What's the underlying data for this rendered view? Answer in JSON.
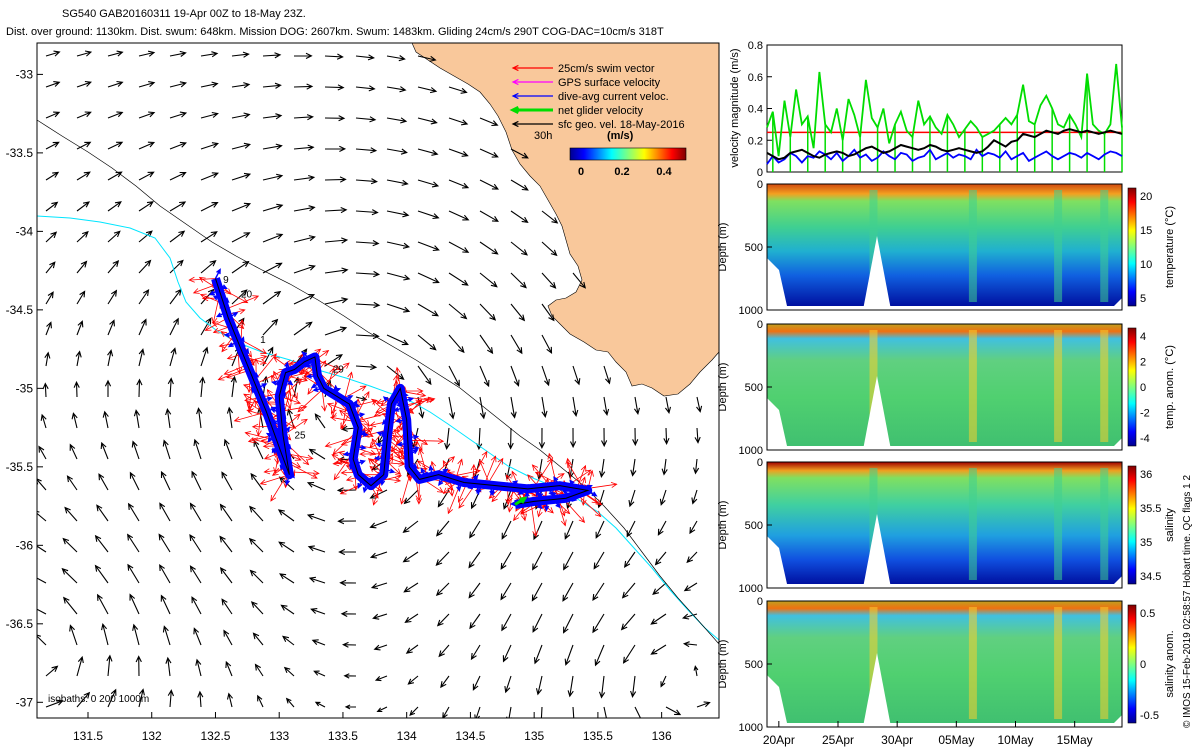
{
  "header": {
    "line1": "SG540 GAB20160311 19-Apr 00Z to 18-May 23Z.",
    "line2": "Dist. over ground: 1130km. Dist. swum: 648km. Mission DOG: 2607km. Swum: 1483km. Gliding 24cm/s 290T COG-DAC=10cm/s 318T"
  },
  "credit": "© IMOS 15-Feb-2019 02:58:57 Hobart time. QC flags 1  2",
  "colors": {
    "land": "#f9c89b",
    "swim": "#ff0000",
    "gps": "#ff00ff",
    "dac": "#0000ff",
    "net": "#00dd00",
    "sfc": "#000000",
    "isobath": "#00e5ff"
  },
  "chart_data": [
    {
      "type": "map",
      "name": "track-map",
      "xlim": [
        131.1,
        136.45
      ],
      "ylim": [
        -37.1,
        -32.8
      ],
      "x_ticks": [
        131.5,
        132,
        132.5,
        133,
        133.5,
        134,
        134.5,
        135,
        135.5,
        136
      ],
      "x_tick_labels": [
        "131.5",
        "132",
        "132.5",
        "133",
        "133.5",
        "134",
        "134.5",
        "135",
        "135.5",
        "136"
      ],
      "y_ticks": [
        -33,
        -33.5,
        -34,
        -34.5,
        -35,
        -35.5,
        -36,
        -36.5,
        -37
      ],
      "y_tick_labels": [
        "-33",
        "-33.5",
        "-34",
        "-34.5",
        "-35",
        "-35.5",
        "-36",
        "-36.5",
        "-37"
      ],
      "legend": [
        {
          "label": "25cm/s swim vector",
          "color": "#ff0000"
        },
        {
          "label": "GPS surface velocity",
          "color": "#ff00ff"
        },
        {
          "label": "dive-avg current veloc.",
          "color": "#0000ff"
        },
        {
          "label": "net glider velocity",
          "color": "#00dd00"
        },
        {
          "label": "sfc geo. vel. 18-May-2016",
          "color": "#000000"
        }
      ],
      "legend_extra": "30h",
      "colorbar_title": "(m/s)",
      "colorbar_ticks": [
        "0",
        "0.2",
        "0.4"
      ],
      "isobath_label": "isobaths: 0  200  1000m",
      "track_day_labels": [
        {
          "text": "9",
          "lon": 132.56,
          "lat": -34.33
        },
        {
          "text": "20",
          "lon": 132.7,
          "lat": -34.42
        },
        {
          "text": "1",
          "lon": 132.85,
          "lat": -34.71
        },
        {
          "text": "29",
          "lon": 133.42,
          "lat": -34.9
        },
        {
          "text": "25",
          "lon": 133.12,
          "lat": -35.32
        }
      ],
      "track": [
        [
          132.5,
          -34.3
        ],
        [
          132.6,
          -34.55
        ],
        [
          132.75,
          -34.85
        ],
        [
          132.9,
          -35.15
        ],
        [
          133.02,
          -35.42
        ],
        [
          133.08,
          -35.55
        ],
        [
          133.03,
          -35.3
        ],
        [
          133.0,
          -35.05
        ],
        [
          133.05,
          -34.9
        ],
        [
          133.12,
          -34.88
        ],
        [
          133.2,
          -34.83
        ],
        [
          133.28,
          -34.8
        ],
        [
          133.3,
          -34.92
        ],
        [
          133.35,
          -35.0
        ],
        [
          133.45,
          -35.05
        ],
        [
          133.55,
          -35.1
        ],
        [
          133.62,
          -35.25
        ],
        [
          133.58,
          -35.45
        ],
        [
          133.62,
          -35.55
        ],
        [
          133.72,
          -35.62
        ],
        [
          133.82,
          -35.55
        ],
        [
          133.85,
          -35.3
        ],
        [
          133.88,
          -35.1
        ],
        [
          133.95,
          -35.0
        ],
        [
          134.0,
          -35.2
        ],
        [
          134.02,
          -35.5
        ],
        [
          134.1,
          -35.58
        ],
        [
          134.25,
          -35.55
        ],
        [
          134.45,
          -35.6
        ],
        [
          134.7,
          -35.62
        ],
        [
          134.95,
          -35.64
        ],
        [
          135.2,
          -35.62
        ],
        [
          135.42,
          -35.65
        ],
        [
          135.25,
          -35.7
        ],
        [
          135.0,
          -35.72
        ],
        [
          134.85,
          -35.74
        ]
      ]
    },
    {
      "type": "line",
      "name": "velocity-magnitude",
      "ylabel": "velocity magnitude (m/s)",
      "ylim": [
        0,
        0.8
      ],
      "y_ticks": [
        0,
        0.2,
        0.4,
        0.6,
        0.8
      ],
      "y_tick_labels": [
        "0",
        "0.2",
        "0.4",
        "0.6",
        "0.8"
      ],
      "xlim_days": [
        0,
        30
      ],
      "swim_reference": 0.25,
      "series": [
        {
          "name": "swim speed",
          "color": "#ff0000",
          "constant": 0.25
        },
        {
          "name": "net glider velocity",
          "color": "#00dd00",
          "values": [
            0.28,
            0.38,
            0.1,
            0.45,
            0.22,
            0.52,
            0.3,
            0.35,
            0.15,
            0.63,
            0.3,
            0.25,
            0.4,
            0.2,
            0.46,
            0.36,
            0.22,
            0.58,
            0.34,
            0.28,
            0.4,
            0.18,
            0.3,
            0.38,
            0.26,
            0.22,
            0.45,
            0.3,
            0.35,
            0.28,
            0.24,
            0.36,
            0.3,
            0.22,
            0.27,
            0.32,
            0.28,
            0.22,
            0.24,
            0.26,
            0.3,
            0.34,
            0.3,
            0.36,
            0.55,
            0.32,
            0.3,
            0.42,
            0.48,
            0.4,
            0.3,
            0.28,
            0.36,
            0.3,
            0.22,
            0.62,
            0.3,
            0.26,
            0.24,
            0.3,
            0.68,
            0.28
          ]
        },
        {
          "name": "dive-avg current",
          "color": "#0000ff",
          "values": [
            0.05,
            0.1,
            0.06,
            0.08,
            0.12,
            0.1,
            0.06,
            0.1,
            0.09,
            0.13,
            0.11,
            0.08,
            0.12,
            0.07,
            0.1,
            0.14,
            0.09,
            0.11,
            0.07,
            0.09,
            0.13,
            0.1,
            0.08,
            0.12,
            0.11,
            0.07,
            0.09,
            0.1,
            0.14,
            0.08,
            0.1,
            0.12,
            0.09,
            0.11,
            0.1,
            0.08,
            0.14,
            0.1,
            0.12,
            0.11,
            0.09,
            0.13,
            0.08,
            0.1,
            0.12,
            0.07,
            0.09,
            0.11,
            0.13,
            0.1,
            0.08,
            0.1,
            0.12,
            0.11,
            0.09,
            0.12,
            0.1,
            0.08,
            0.11,
            0.13,
            0.12,
            0.1
          ]
        },
        {
          "name": "sfc geo. vel.",
          "color": "#000000",
          "values": [
            0.12,
            0.1,
            0.08,
            0.09,
            0.12,
            0.13,
            0.14,
            0.12,
            0.1,
            0.09,
            0.11,
            0.12,
            0.13,
            0.12,
            0.1,
            0.11,
            0.13,
            0.15,
            0.16,
            0.14,
            0.12,
            0.13,
            0.15,
            0.17,
            0.16,
            0.15,
            0.14,
            0.15,
            0.17,
            0.16,
            0.14,
            0.13,
            0.14,
            0.15,
            0.14,
            0.13,
            0.12,
            0.13,
            0.16,
            0.2,
            0.18,
            0.16,
            0.19,
            0.2,
            0.24,
            0.23,
            0.22,
            0.24,
            0.26,
            0.25,
            0.24,
            0.26,
            0.27,
            0.26,
            0.25,
            0.26,
            0.25,
            0.24,
            0.25,
            0.26,
            0.25,
            0.24
          ]
        }
      ]
    },
    {
      "type": "heatmap",
      "name": "temperature-section",
      "variable": "temperature",
      "ylabel": "Depth (m)",
      "colorbar_label": "temperature (°C)",
      "y_tick_labels": [
        "0",
        "500",
        "1000"
      ],
      "ylim": [
        0,
        1000
      ],
      "colorbar_range": [
        4,
        22
      ],
      "colorbar_ticks": [
        "20",
        "15",
        "10",
        "5"
      ]
    },
    {
      "type": "heatmap",
      "name": "temperature-anomaly-section",
      "variable": "temp_anom",
      "ylabel": "Depth (m)",
      "colorbar_label": "temp. anom. (°C)",
      "y_tick_labels": [
        "0",
        "500",
        "1000"
      ],
      "ylim": [
        0,
        1000
      ],
      "colorbar_range": [
        -4,
        4
      ],
      "colorbar_ticks": [
        "4",
        "2",
        "0",
        "-2",
        "-4"
      ]
    },
    {
      "type": "heatmap",
      "name": "salinity-section",
      "variable": "salinity",
      "ylabel": "Depth (m)",
      "colorbar_label": "salinity",
      "y_tick_labels": [
        "0",
        "500",
        "1000"
      ],
      "ylim": [
        0,
        1000
      ],
      "colorbar_range": [
        34.3,
        36.1
      ],
      "colorbar_ticks": [
        "36",
        "35.5",
        "35",
        "34.5"
      ]
    },
    {
      "type": "heatmap",
      "name": "salinity-anomaly-section",
      "variable": "sal_anom",
      "ylabel": "Depth (m)",
      "colorbar_label": "salinity anom.",
      "y_tick_labels": [
        "0",
        "500",
        "1000"
      ],
      "ylim": [
        0,
        1000
      ],
      "colorbar_range": [
        -0.5,
        0.5
      ],
      "colorbar_ticks": [
        "0.5",
        "0",
        "-0.5"
      ],
      "time_labels": [
        "20Apr",
        "25Apr",
        "30Apr",
        "05May",
        "10May",
        "15May"
      ],
      "time_days": [
        1,
        6,
        11,
        16,
        21,
        26
      ]
    }
  ]
}
